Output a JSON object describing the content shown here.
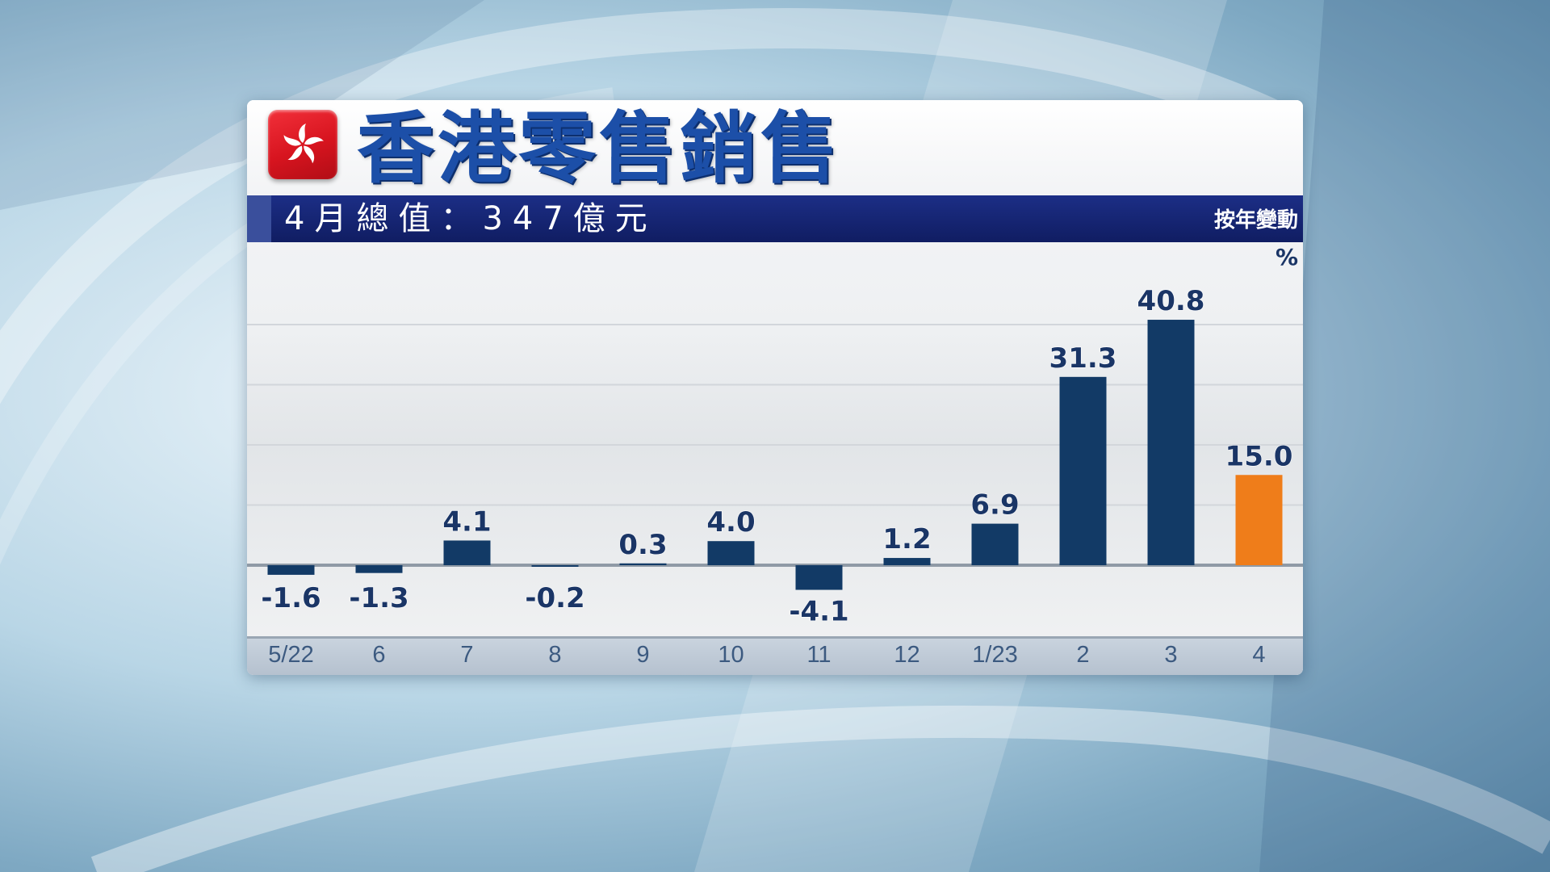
{
  "header": {
    "title": "香港零售銷售",
    "subtitle": "4月總值：347億元",
    "unit_label": "按年變動",
    "percent_sign": "%"
  },
  "flag_icon": "hong-kong-flag-icon",
  "colors": {
    "bar": "#123a66",
    "highlight_bar": "#ef7d1a",
    "title": "#1c4fa8",
    "subtitle_bar": "#14236e",
    "value_label": "#1a3566"
  },
  "chart_data": {
    "type": "bar",
    "title": "香港零售銷售",
    "subtitle": "4月總值：347億元",
    "ylabel": "按年變動 %",
    "categories": [
      "5/22",
      "6",
      "7",
      "8",
      "9",
      "10",
      "11",
      "12",
      "1/23",
      "2",
      "3",
      "4"
    ],
    "values": [
      -1.6,
      -1.3,
      4.1,
      -0.2,
      0.3,
      4.0,
      -4.1,
      1.2,
      6.9,
      31.3,
      40.8,
      15.0
    ],
    "value_labels": [
      "-1.6",
      "-1.3",
      "4.1",
      "-0.2",
      "0.3",
      "4.0",
      "-4.1",
      "1.2",
      "6.9",
      "31.3",
      "40.8",
      "15.0"
    ],
    "highlight_index": 11,
    "grid": true,
    "legend": "none"
  }
}
